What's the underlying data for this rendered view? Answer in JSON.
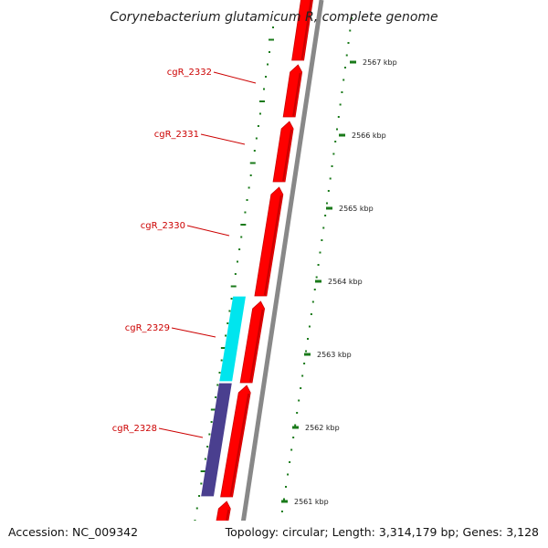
{
  "title": "Corynebacterium glutamicum R, complete genome",
  "footer": {
    "accession": "Accession: NC_009342",
    "topology": "Topology: circular; Length: 3,314,179 bp; Genes: 3,128"
  },
  "colors": {
    "forward_gene": "#ff0000",
    "reverse_gene_cyan": "#00e5ee",
    "reverse_gene_purple": "#4a3f8f",
    "label": "#cc0000",
    "tick": "#1a7a1a",
    "backbone": "#888888"
  },
  "genes": [
    {
      "name": "cgR_2332",
      "strand": "forward"
    },
    {
      "name": "cgR_2331",
      "strand": "forward"
    },
    {
      "name": "cgR_2330",
      "strand": "forward"
    },
    {
      "name": "cgR_2329",
      "strand": "forward"
    },
    {
      "name": "cgR_2328",
      "strand": "forward"
    }
  ],
  "reverse_genes": [
    {
      "color_key": "reverse_gene_cyan"
    },
    {
      "color_key": "reverse_gene_purple"
    }
  ],
  "ticks": [
    "2567 kbp",
    "2566 kbp",
    "2565 kbp",
    "2564 kbp",
    "2563 kbp",
    "2562 kbp",
    "2561 kbp"
  ]
}
